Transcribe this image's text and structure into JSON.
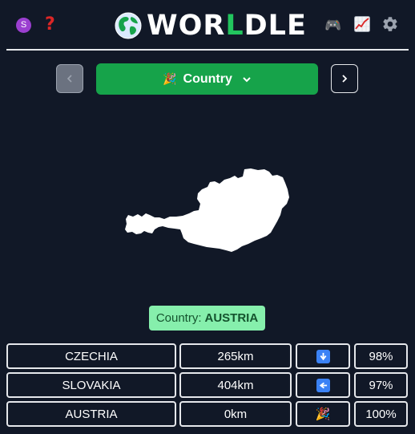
{
  "header": {
    "avatar_letter": "S",
    "help_symbol": "?",
    "logo_prefix": "WOR",
    "logo_accent": "L",
    "logo_suffix": "DLE",
    "game_icon": "🎮"
  },
  "controls": {
    "mode_emoji": "🎉",
    "mode_label": "Country"
  },
  "answer": {
    "label": "Country:",
    "value": "AUSTRIA"
  },
  "guesses": [
    {
      "name": "CZECHIA",
      "distance": "265km",
      "direction": "down-arrow-icon",
      "proximity": "98%"
    },
    {
      "name": "SLOVAKIA",
      "distance": "404km",
      "direction": "left-arrow-icon",
      "proximity": "97%"
    },
    {
      "name": "AUSTRIA",
      "distance": "0km",
      "direction": "🎉",
      "proximity": "100%"
    }
  ],
  "colors": {
    "background": "#111827",
    "primary_green": "#16a34a",
    "answer_bg": "#86efac",
    "answer_text": "#14532d",
    "arrow_blue": "#3b82f6"
  }
}
